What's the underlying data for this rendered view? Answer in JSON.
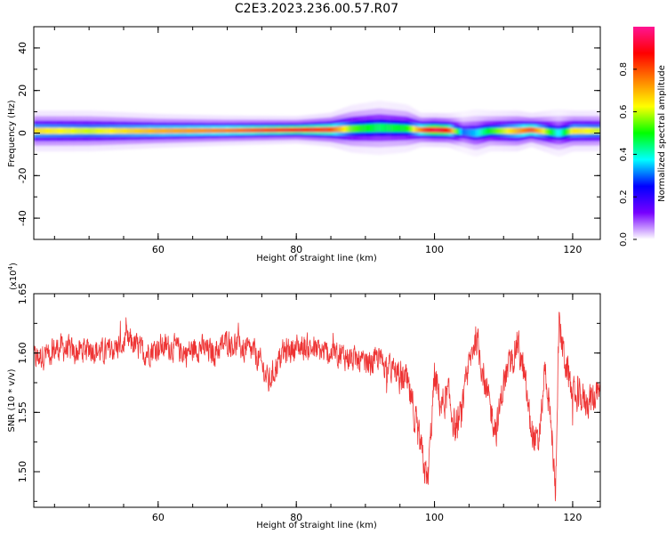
{
  "title": "C2E3.2023.236.00.57.R07",
  "chart_data": [
    {
      "type": "heatmap",
      "xlabel": "Height of straight line (km)",
      "ylabel": "Frequency (Hz)",
      "xlim": [
        42,
        124
      ],
      "ylim": [
        -50,
        50
      ],
      "xticks": [
        "60",
        "80",
        "100",
        "120"
      ],
      "yticks": [
        "-40",
        "-20",
        "0",
        "20",
        "40"
      ],
      "grid": false,
      "colorbar": {
        "label": "Normalized spectral amplitude",
        "range": [
          0,
          1
        ],
        "ticks": [
          "0.0",
          "0.2",
          "0.4",
          "0.6",
          "0.8"
        ],
        "colors": [
          "#ffffff",
          "#7700ff",
          "#0000ff",
          "#00ffff",
          "#00ff00",
          "#ffff00",
          "#ff8000",
          "#ff0000",
          "#ff1493"
        ]
      },
      "band": {
        "x": [
          42,
          50,
          60,
          70,
          80,
          85,
          88,
          92,
          96,
          98,
          100,
          102,
          104,
          106,
          108,
          110,
          112,
          114,
          116,
          118,
          120,
          124
        ],
        "center_hz": [
          1,
          1,
          1,
          1.2,
          1.5,
          1.6,
          2,
          2.5,
          2.2,
          1.5,
          1.5,
          1.3,
          0.5,
          0,
          1,
          1,
          1,
          1.5,
          0.8,
          0,
          1,
          1
        ],
        "halfwidth_hz": [
          3,
          3,
          2.5,
          2.2,
          2,
          2.5,
          3.5,
          4,
          3.5,
          2.5,
          2.5,
          2.5,
          3,
          3.5,
          3,
          3,
          3,
          2.5,
          3,
          3.5,
          3,
          3
        ],
        "peak_amplitude": [
          0.65,
          0.6,
          0.7,
          0.75,
          0.85,
          0.8,
          0.55,
          0.45,
          0.5,
          0.75,
          0.95,
          0.85,
          0.3,
          0.35,
          0.5,
          0.6,
          0.7,
          0.8,
          0.6,
          0.35,
          0.65,
          0.6
        ]
      }
    },
    {
      "type": "line",
      "xlabel": "Height of straight line (km)",
      "ylabel": "SNR (10 * v/v)",
      "y_multiplier": "(x10",
      "y_multiplier_exp": "4",
      "y_multiplier_close": ")",
      "xlim": [
        42,
        124
      ],
      "ylim": [
        1.47,
        1.65
      ],
      "xticks": [
        "60",
        "80",
        "100",
        "120"
      ],
      "yticks": [
        "1.50",
        "1.55",
        "1.60",
        "1.65"
      ],
      "grid": false,
      "series": [
        {
          "color": "#ee3333",
          "x": [
            42,
            44,
            46,
            48,
            50,
            52,
            54,
            56,
            58,
            60,
            62,
            64,
            66,
            68,
            70,
            72,
            74,
            75,
            76,
            78,
            80,
            82,
            84,
            86,
            88,
            90,
            92,
            94,
            96,
            97,
            98,
            99,
            100,
            101,
            102,
            103,
            104,
            105,
            106,
            107,
            108,
            109,
            110,
            111,
            112,
            113,
            114,
            115,
            116,
            117,
            117.5,
            118,
            119,
            120,
            122,
            124
          ],
          "y": [
            1.595,
            1.6,
            1.605,
            1.6,
            1.605,
            1.6,
            1.605,
            1.61,
            1.6,
            1.605,
            1.605,
            1.6,
            1.605,
            1.6,
            1.61,
            1.605,
            1.6,
            1.59,
            1.575,
            1.6,
            1.605,
            1.605,
            1.6,
            1.6,
            1.595,
            1.59,
            1.595,
            1.585,
            1.575,
            1.55,
            1.52,
            1.49,
            1.58,
            1.555,
            1.565,
            1.535,
            1.55,
            1.59,
            1.615,
            1.585,
            1.555,
            1.535,
            1.575,
            1.59,
            1.61,
            1.58,
            1.535,
            1.52,
            1.59,
            1.53,
            1.48,
            1.625,
            1.59,
            1.565,
            1.56,
            1.565
          ]
        }
      ]
    }
  ]
}
